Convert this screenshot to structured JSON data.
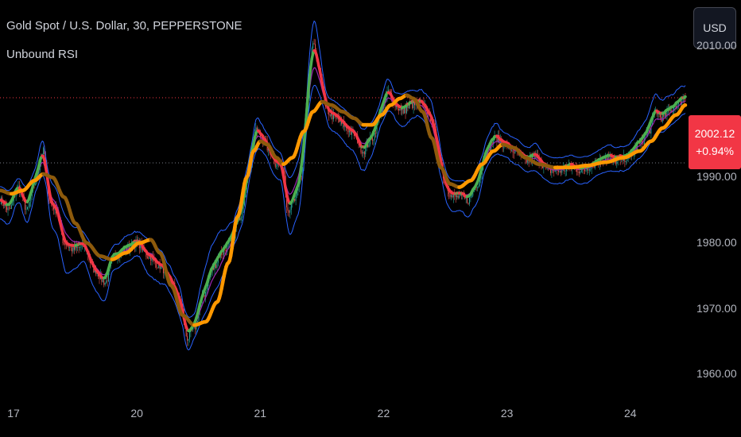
{
  "header": {
    "title": "Gold Spot / U.S. Dollar, 30, PEPPERSTONE",
    "indicator": "Unbound RSI"
  },
  "currency_button": {
    "label": "USD"
  },
  "price_badge": {
    "price": "2002.12",
    "change": "+0.94%"
  },
  "colors": {
    "background": "#000000",
    "candle_up": "#26a69a",
    "candle_down": "#ef5350",
    "band": "#2962ff",
    "band_fill_up": "#4caf50",
    "band_fill_down": "#f23645",
    "slow_line_bright": "#ff9800",
    "slow_line_dim": "#8d5a0c",
    "mid_line": "#9c27b0",
    "price_line": "#f23645",
    "ref_line": "#787b86"
  },
  "chart_data": {
    "type": "line",
    "title": "Gold Spot / U.S. Dollar, 30, PEPPERSTONE",
    "indicator": "Unbound RSI",
    "ylim": [
      1957,
      2017
    ],
    "ytick_labels": [
      "2010.00",
      "1990.00",
      "1980.00",
      "1970.00",
      "1960.00"
    ],
    "ytick_values": [
      2010,
      1990,
      1980,
      1970,
      1960
    ],
    "xtick_labels": [
      "17",
      "20",
      "21",
      "22",
      "23",
      "24"
    ],
    "xtick_index": [
      0,
      108,
      216,
      324,
      432,
      540
    ],
    "n_bars": 600,
    "last_price": 2002.12,
    "reference_level": 1992.2,
    "grid": false,
    "close_anchors": [
      [
        0,
        1986.5
      ],
      [
        8,
        1985
      ],
      [
        16,
        1988.5
      ],
      [
        24,
        1985
      ],
      [
        30,
        1989
      ],
      [
        38,
        1994
      ],
      [
        44,
        1986
      ],
      [
        50,
        1985
      ],
      [
        56,
        1980
      ],
      [
        64,
        1979
      ],
      [
        74,
        1979.5
      ],
      [
        82,
        1976
      ],
      [
        92,
        1974
      ],
      [
        100,
        1978
      ],
      [
        110,
        1979
      ],
      [
        120,
        1980
      ],
      [
        130,
        1978
      ],
      [
        140,
        1976.5
      ],
      [
        150,
        1974
      ],
      [
        158,
        1971
      ],
      [
        164,
        1965.5
      ],
      [
        170,
        1967
      ],
      [
        178,
        1972
      ],
      [
        186,
        1976
      ],
      [
        194,
        1978.5
      ],
      [
        202,
        1980
      ],
      [
        210,
        1984
      ],
      [
        218,
        1991
      ],
      [
        224,
        1997
      ],
      [
        230,
        1996
      ],
      [
        236,
        1994
      ],
      [
        242,
        1992
      ],
      [
        248,
        1991.5
      ],
      [
        252,
        1985
      ],
      [
        258,
        1986.5
      ],
      [
        264,
        1990
      ],
      [
        268,
        1999
      ],
      [
        274,
        2010
      ],
      [
        280,
        2006
      ],
      [
        286,
        2000
      ],
      [
        294,
        1999
      ],
      [
        300,
        1998
      ],
      [
        310,
        1996.5
      ],
      [
        318,
        1994
      ],
      [
        326,
        1996
      ],
      [
        334,
        2000
      ],
      [
        340,
        2003
      ],
      [
        346,
        2001
      ],
      [
        352,
        2000
      ],
      [
        360,
        2001
      ],
      [
        370,
        2001
      ],
      [
        378,
        1999
      ],
      [
        384,
        1994
      ],
      [
        390,
        1989
      ],
      [
        396,
        1987
      ],
      [
        402,
        1987
      ],
      [
        410,
        1986.5
      ],
      [
        418,
        1989
      ],
      [
        426,
        1994
      ],
      [
        434,
        1996
      ],
      [
        442,
        1995
      ],
      [
        450,
        1994
      ],
      [
        460,
        1992.5
      ],
      [
        470,
        1993
      ],
      [
        480,
        1991
      ],
      [
        490,
        1991
      ],
      [
        500,
        1991.5
      ],
      [
        510,
        1991
      ],
      [
        520,
        1992
      ],
      [
        530,
        1993
      ],
      [
        540,
        1992.5
      ],
      [
        550,
        1993
      ],
      [
        560,
        1995
      ],
      [
        568,
        1997
      ],
      [
        574,
        2000
      ],
      [
        580,
        1999
      ],
      [
        586,
        2000
      ],
      [
        592,
        2001
      ],
      [
        600,
        2002.12
      ]
    ],
    "slow_anchors": [
      [
        0,
        1988
      ],
      [
        10,
        1987.5
      ],
      [
        20,
        1988
      ],
      [
        30,
        1989.5
      ],
      [
        38,
        1990.5
      ],
      [
        46,
        1990
      ],
      [
        56,
        1987
      ],
      [
        66,
        1983
      ],
      [
        76,
        1980
      ],
      [
        88,
        1978
      ],
      [
        98,
        1977.5
      ],
      [
        110,
        1978.5
      ],
      [
        122,
        1980
      ],
      [
        132,
        1980.5
      ],
      [
        140,
        1978.5
      ],
      [
        150,
        1973.5
      ],
      [
        160,
        1969
      ],
      [
        170,
        1967.5
      ],
      [
        180,
        1968
      ],
      [
        190,
        1971
      ],
      [
        200,
        1977
      ],
      [
        208,
        1984
      ],
      [
        216,
        1990
      ],
      [
        222,
        1994
      ],
      [
        228,
        1995.5
      ],
      [
        234,
        1995
      ],
      [
        242,
        1993
      ],
      [
        248,
        1992
      ],
      [
        256,
        1993
      ],
      [
        266,
        1997
      ],
      [
        274,
        2000
      ],
      [
        282,
        2001.5
      ],
      [
        290,
        2001
      ],
      [
        300,
        2000
      ],
      [
        310,
        1999
      ],
      [
        318,
        1998
      ],
      [
        326,
        1998
      ],
      [
        334,
        1999.5
      ],
      [
        342,
        2001
      ],
      [
        350,
        2002
      ],
      [
        356,
        2002.5
      ],
      [
        362,
        2002
      ],
      [
        370,
        2000
      ],
      [
        378,
        1996
      ],
      [
        386,
        1991.5
      ],
      [
        394,
        1989
      ],
      [
        402,
        1988.5
      ],
      [
        412,
        1989.5
      ],
      [
        422,
        1992
      ],
      [
        432,
        1994
      ],
      [
        440,
        1995
      ],
      [
        450,
        1994.5
      ],
      [
        460,
        1993
      ],
      [
        472,
        1992
      ],
      [
        486,
        1991.5
      ],
      [
        500,
        1991.5
      ],
      [
        514,
        1991.8
      ],
      [
        530,
        1992.3
      ],
      [
        546,
        1993
      ],
      [
        560,
        1994
      ],
      [
        570,
        1995.5
      ],
      [
        580,
        1997.5
      ],
      [
        592,
        1999.5
      ],
      [
        600,
        2001
      ]
    ],
    "series": [
      {
        "name": "",
        "role": "candles"
      },
      {
        "name": "",
        "role": "upper band"
      },
      {
        "name": "",
        "role": "lower band"
      },
      {
        "name": "",
        "role": "fast line"
      },
      {
        "name": "",
        "role": "slow line"
      }
    ]
  }
}
